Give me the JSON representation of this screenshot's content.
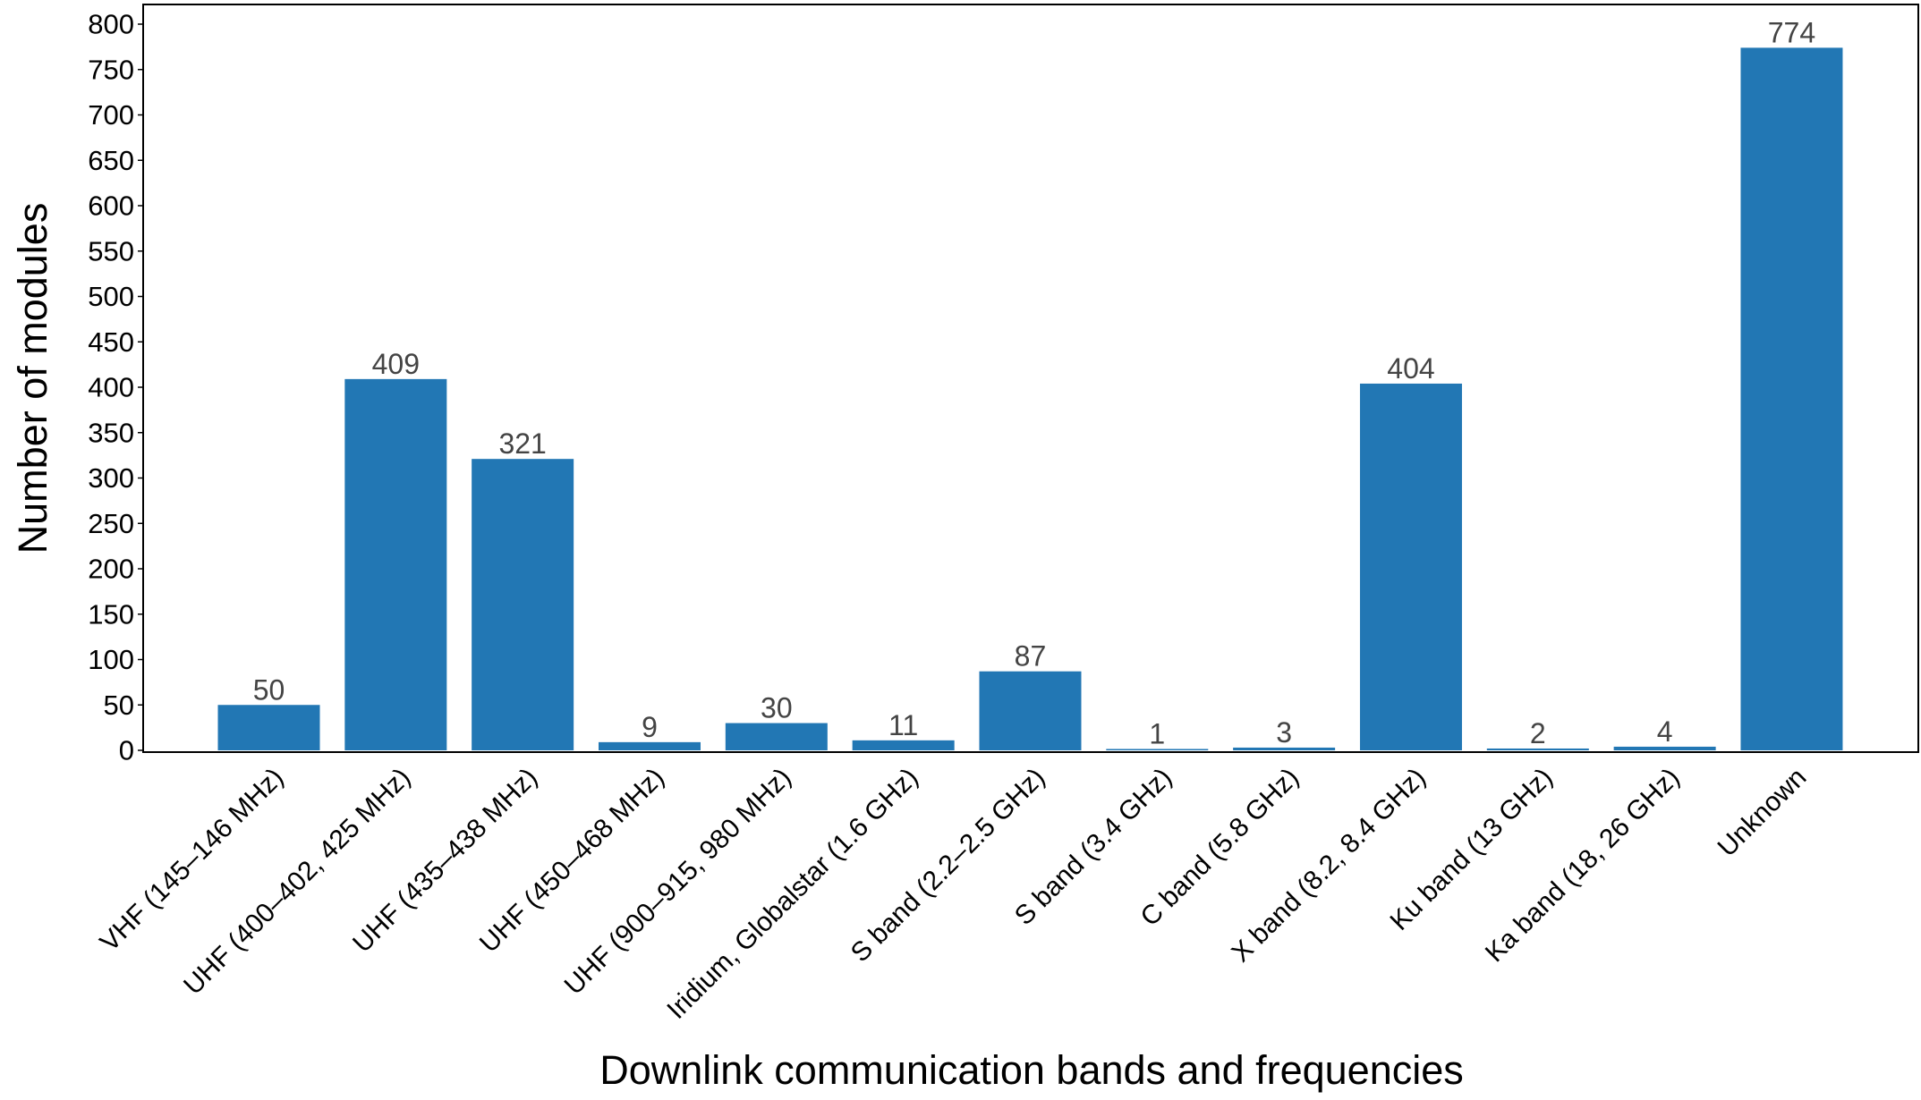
{
  "chart_data": {
    "type": "bar",
    "title": "",
    "xlabel": "Downlink communication bands and frequencies",
    "ylabel": "Number of modules",
    "ylim": [
      0,
      820
    ],
    "yticks": [
      0,
      50,
      100,
      150,
      200,
      250,
      300,
      350,
      400,
      450,
      500,
      550,
      600,
      650,
      700,
      750,
      800
    ],
    "grid": false,
    "legend": "none",
    "bar_color": "#2277b4",
    "categories": [
      "VHF (145–146 MHz)",
      "UHF (400–402, 425 MHz)",
      "UHF (435–438 MHz)",
      "UHF (450–468 MHz)",
      "UHF (900–915, 980 MHz)",
      "Iridium, Globalstar (1.6 GHz)",
      "S band (2.2–2.5 GHz)",
      "S band (3.4 GHz)",
      "C band (5.8 GHz)",
      "X band (8.2, 8.4 GHz)",
      "Ku band (13 GHz)",
      "Ka band (18, 26 GHz)",
      "Unknown"
    ],
    "values": [
      50,
      409,
      321,
      9,
      30,
      11,
      87,
      1,
      3,
      404,
      2,
      4,
      774
    ]
  }
}
